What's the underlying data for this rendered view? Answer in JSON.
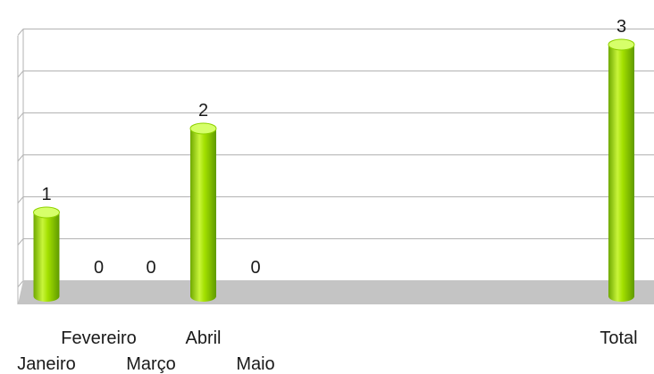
{
  "chart_data": {
    "type": "bar",
    "categories": [
      "Janeiro",
      "Fevereiro",
      "Março",
      "Abril",
      "Maio",
      "",
      "",
      "",
      "",
      "",
      "",
      "Total"
    ],
    "values": [
      1,
      0,
      0,
      2,
      0,
      null,
      null,
      null,
      null,
      null,
      null,
      3
    ],
    "data_labels": [
      "1",
      "0",
      "0",
      "2",
      "0",
      "",
      "",
      "",
      "",
      "",
      "",
      "3"
    ],
    "title": "",
    "xlabel": "",
    "ylabel": "",
    "ylim": [
      0,
      3
    ],
    "grid": true,
    "legend": "none",
    "colors": {
      "bar": "#8ed100",
      "bar_highlight": "#d6ff6a",
      "bar_shadow": "#5f9a00",
      "floor": "#c4c4c4",
      "grid": "#b3b3b3"
    }
  }
}
